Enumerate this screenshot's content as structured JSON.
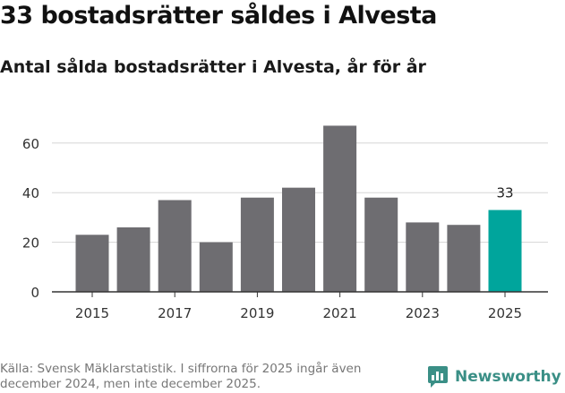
{
  "title": "33 bostadsrätter såldes i Alvesta",
  "subtitle": "Antal sålda bostadsrätter i Alvesta, år för år",
  "source": "Källa: Svensk Mäklarstatistik. I siffrorna för 2025 ingår även december 2024, men inte december 2025.",
  "brand": {
    "name": "Newsworthy",
    "icon": "newsworthy-logo-icon"
  },
  "colors": {
    "bar": "#6e6d71",
    "highlight": "#00a59c",
    "brand": "#3a8f86",
    "axis": "#333333",
    "grid": "#d6d6d6"
  },
  "chart_data": {
    "type": "bar",
    "title": "Antal sålda bostadsrätter i Alvesta, år för år",
    "xlabel": "",
    "ylabel": "",
    "categories": [
      "2015",
      "2016",
      "2017",
      "2018",
      "2019",
      "2020",
      "2021",
      "2022",
      "2023",
      "2024",
      "2025"
    ],
    "values": [
      23,
      26,
      37,
      20,
      38,
      42,
      67,
      38,
      28,
      27,
      33
    ],
    "highlight_index": 10,
    "data_labels": [
      {
        "index": 10,
        "text": "33"
      }
    ],
    "x_tick_labels": [
      "2015",
      "2017",
      "2019",
      "2021",
      "2023",
      "2025"
    ],
    "y_ticks": [
      0,
      20,
      40,
      60
    ],
    "ylim": [
      0,
      70
    ],
    "grid": true
  }
}
